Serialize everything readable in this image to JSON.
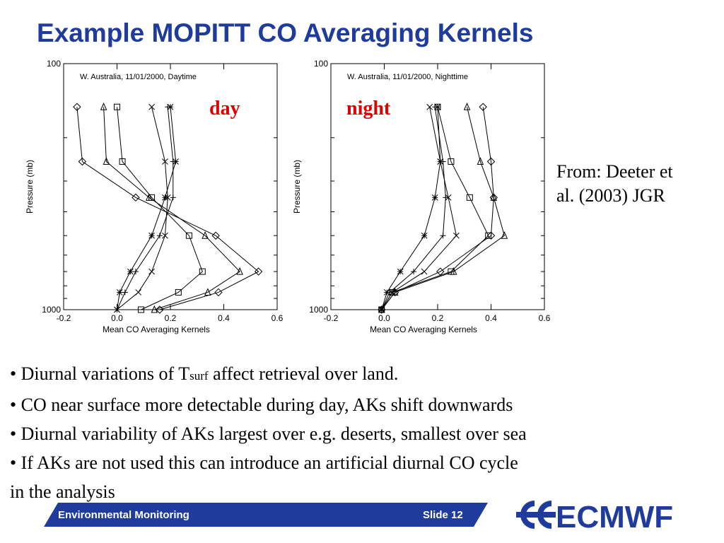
{
  "slide": {
    "title": "Example MOPITT CO Averaging Kernels",
    "source_line1": "From: Deeter et",
    "source_line2": "al. (2003) JGR",
    "bullets": [
      {
        "pre": "• Diurnal variations of T",
        "sub": "surf",
        "post": " affect retrieval over land."
      },
      {
        "pre": "• CO near surface more detectable during day, AKs shift downwards",
        "sub": "",
        "post": ""
      },
      {
        "pre": "• Diurnal variability of AKs largest over e.g. deserts, smallest over sea",
        "sub": "",
        "post": ""
      },
      {
        "pre": "• If AKs are not used this can introduce an artificial diurnal CO cycle",
        "sub": "",
        "post": ""
      },
      {
        "pre": "in the analysis",
        "sub": "",
        "post": ""
      }
    ],
    "footer_left": "Environmental Monitoring",
    "footer_right": "Slide 12",
    "logo_text": "ECMWF",
    "colors": {
      "title": "#1f3c9c",
      "annotation": "#e00000",
      "footer": "#1f3c9c"
    }
  },
  "chart_data": [
    {
      "type": "line",
      "title": "W. Australia, 11/01/2000, Daytime",
      "annotation": "day",
      "xlabel": "Mean CO Averaging Kernels",
      "ylabel": "Pressure (mb)",
      "xlim": [
        -0.2,
        0.6
      ],
      "xticks": [
        "-0.2",
        "0.0",
        "0.2",
        "0.4",
        "0.6"
      ],
      "ylim": [
        100,
        1000
      ],
      "y_scale": "log",
      "yticks": [
        "100",
        "1000"
      ],
      "pressure_levels": [
        1000,
        850,
        700,
        500,
        350,
        250,
        150
      ],
      "series": [
        {
          "marker": "diamond",
          "x": [
            0.16,
            0.38,
            0.53,
            0.37,
            0.07,
            -0.13,
            -0.15
          ]
        },
        {
          "marker": "triangle",
          "x": [
            0.14,
            0.34,
            0.46,
            0.33,
            0.12,
            -0.04,
            -0.05
          ]
        },
        {
          "marker": "square",
          "x": [
            0.09,
            0.23,
            0.32,
            0.27,
            0.13,
            0.02,
            0.0
          ]
        },
        {
          "marker": "x",
          "x": [
            0.0,
            0.08,
            0.13,
            0.18,
            0.19,
            0.18,
            0.13
          ]
        },
        {
          "marker": "plus",
          "x": [
            0.0,
            0.03,
            0.07,
            0.16,
            0.21,
            0.21,
            0.19
          ]
        },
        {
          "marker": "asterisk",
          "x": [
            0.0,
            0.01,
            0.05,
            0.13,
            0.18,
            0.22,
            0.2
          ]
        }
      ]
    },
    {
      "type": "line",
      "title": "W. Australia, 11/01/2000, Nighttime",
      "annotation": "night",
      "xlabel": "Mean CO Averaging Kernels",
      "ylabel": "Pressure (mb)",
      "xlim": [
        -0.2,
        0.6
      ],
      "xticks": [
        "-0.2",
        "0.0",
        "0.2",
        "0.4",
        "0.6"
      ],
      "ylim": [
        100,
        1000
      ],
      "y_scale": "log",
      "yticks": [
        "100",
        "1000"
      ],
      "pressure_levels": [
        1000,
        850,
        700,
        500,
        350,
        250,
        150
      ],
      "series": [
        {
          "marker": "diamond",
          "x": [
            -0.01,
            0.04,
            0.21,
            0.4,
            0.41,
            0.4,
            0.37
          ]
        },
        {
          "marker": "triangle",
          "x": [
            -0.01,
            0.04,
            0.26,
            0.45,
            0.41,
            0.36,
            0.31
          ]
        },
        {
          "marker": "square",
          "x": [
            -0.01,
            0.03,
            0.25,
            0.39,
            0.32,
            0.25,
            0.2
          ]
        },
        {
          "marker": "x",
          "x": [
            -0.01,
            0.03,
            0.15,
            0.27,
            0.24,
            0.21,
            0.17
          ]
        },
        {
          "marker": "plus",
          "x": [
            -0.01,
            0.02,
            0.11,
            0.22,
            0.23,
            0.22,
            0.19
          ]
        },
        {
          "marker": "asterisk",
          "x": [
            -0.01,
            0.01,
            0.06,
            0.15,
            0.19,
            0.21,
            0.2
          ]
        }
      ]
    }
  ]
}
